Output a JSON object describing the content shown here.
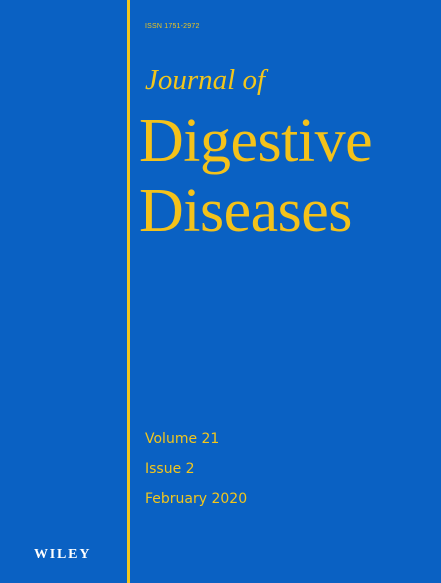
{
  "cover": {
    "issn": "ISSN 1751-2972",
    "journal_prefix": "Journal of",
    "title_line_1": "Digestive",
    "title_line_2": "Diseases",
    "volume": "Volume 21",
    "issue": "Issue 2",
    "date": "February 2020",
    "publisher": "WILEY"
  },
  "colors": {
    "background": "#0a61c3",
    "accent": "#f2c61c",
    "publisher_text": "#ffffff"
  }
}
